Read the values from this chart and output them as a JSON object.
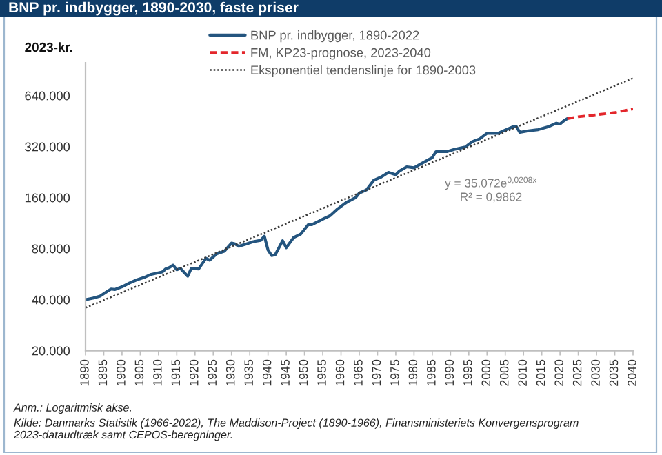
{
  "chart_data": {
    "type": "line",
    "title": "BNP pr. indbygger, 1890-2030, faste priser",
    "ylabel": "2023-kr.",
    "log": true,
    "legend": "top",
    "xlim": [
      1890,
      2040
    ],
    "xticks": [
      1890,
      1895,
      1900,
      1905,
      1910,
      1915,
      1920,
      1925,
      1930,
      1935,
      1940,
      1945,
      1950,
      1955,
      1960,
      1965,
      1970,
      1975,
      1980,
      1985,
      1990,
      1995,
      2000,
      2005,
      2010,
      2015,
      2020,
      2025,
      2030,
      2035,
      2040
    ],
    "ylim": [
      20000,
      1000000
    ],
    "yticks": [
      {
        "value": 20000,
        "label": "20.000"
      },
      {
        "value": 40000,
        "label": "40.000"
      },
      {
        "value": 80000,
        "label": "80.000"
      },
      {
        "value": 160000,
        "label": "160.000"
      },
      {
        "value": 320000,
        "label": "320.000"
      },
      {
        "value": 640000,
        "label": "640.000"
      }
    ],
    "series": [
      {
        "name": "BNP pr. indbygger, 1890-2022",
        "color": "#24557f",
        "line_style": "solid",
        "x": [
          1890,
          1892,
          1894,
          1896,
          1897,
          1898,
          1900,
          1902,
          1904,
          1906,
          1908,
          1911,
          1912,
          1913,
          1914,
          1915,
          1916,
          1918,
          1919,
          1921,
          1923,
          1924,
          1925,
          1926,
          1928,
          1930,
          1931,
          1932,
          1934,
          1936,
          1938,
          1939,
          1940,
          1941,
          1942,
          1944,
          1945,
          1947,
          1949,
          1951,
          1952,
          1954,
          1955,
          1957,
          1959,
          1961,
          1962,
          1964,
          1965,
          1967,
          1969,
          1971,
          1973,
          1975,
          1976,
          1978,
          1980,
          1982,
          1985,
          1986,
          1989,
          1991,
          1994,
          1996,
          1998,
          2000,
          2003,
          2005,
          2007,
          2008,
          2009,
          2011,
          2014,
          2017,
          2019,
          2020,
          2021,
          2022
        ],
        "values": [
          40000,
          40800,
          42000,
          44800,
          46200,
          45900,
          47600,
          50100,
          52300,
          54000,
          56400,
          58200,
          60800,
          61900,
          63900,
          60000,
          61200,
          55000,
          61200,
          60700,
          70200,
          68400,
          71500,
          74700,
          77100,
          86200,
          85200,
          82500,
          85200,
          87900,
          89500,
          94700,
          78500,
          72800,
          73800,
          89000,
          81000,
          92900,
          97700,
          110700,
          110700,
          116400,
          119300,
          125000,
          136800,
          147400,
          152100,
          159900,
          170200,
          177800,
          202700,
          211700,
          225300,
          218400,
          229600,
          243000,
          240000,
          253800,
          275400,
          298600,
          298600,
          308000,
          317800,
          342600,
          355600,
          383200,
          383200,
          400300,
          418200,
          420800,
          388000,
          395400,
          402800,
          420800,
          439800,
          434300,
          453700,
          468000
        ]
      },
      {
        "name": "FM, KP23-prognose, 2023-2040",
        "color": "#e3262b",
        "line_style": "dashed",
        "x": [
          2022,
          2025,
          2030,
          2035,
          2040
        ],
        "values": [
          468000,
          480000,
          493000,
          508000,
          534000
        ]
      },
      {
        "name": "Eksponentiel tendenslinje for 1890-2003",
        "color": "#3a3a3a",
        "line_style": "dotted",
        "x": [
          1890,
          2040
        ],
        "values": [
          35800,
          810000
        ]
      }
    ],
    "annotations": [
      "y = 35.072e$^{0,0208x}$",
      "R² = 0,9862",
      "Anm.: Logaritmisk akse.",
      "Kilde: Danmarks Statistik (1966-2022), The Maddison-Project (1890-1966), Finansministeriets Konvergensprogram 2023-dataudtræk samt CEPOS-beregninger."
    ]
  }
}
